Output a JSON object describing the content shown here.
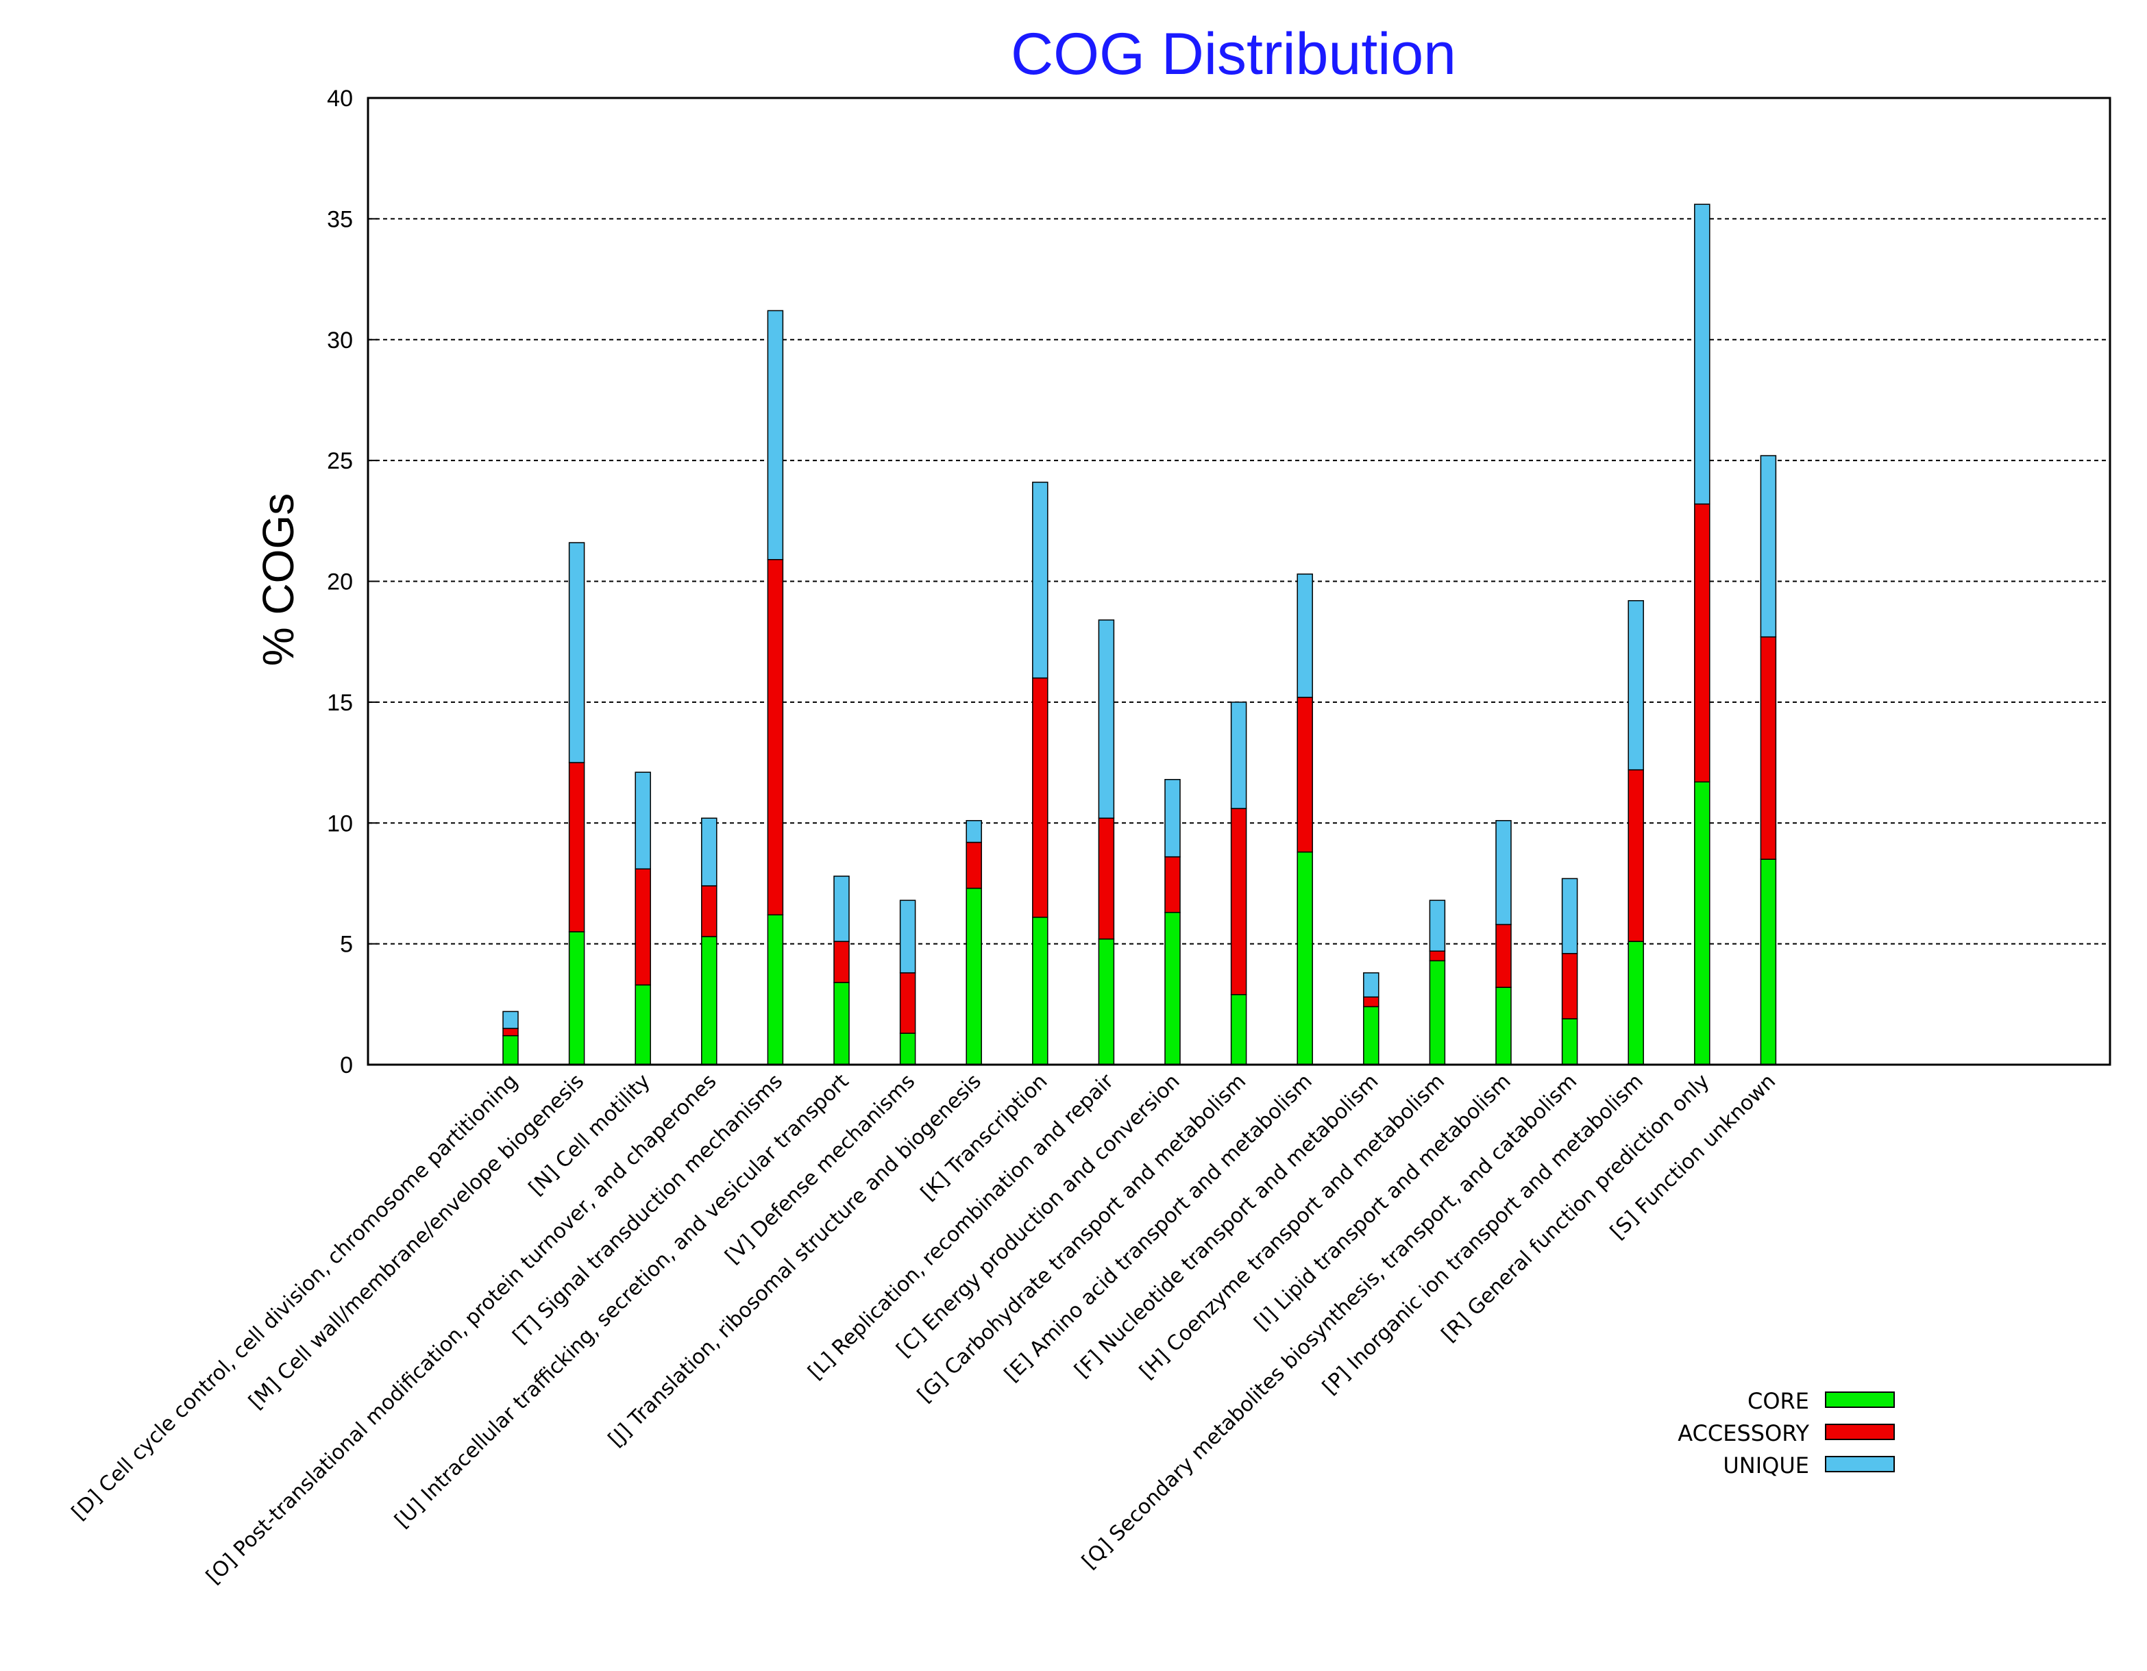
{
  "chart_data": {
    "type": "bar",
    "stacked": true,
    "title": "COG Distribution",
    "xlabel": "",
    "ylabel": "% COGs",
    "ylim": [
      0,
      40
    ],
    "yticks": [
      0,
      5,
      10,
      15,
      20,
      25,
      30,
      35,
      40
    ],
    "grid": true,
    "legend_position": "bottom-right",
    "categories": [
      "[D] Cell cycle control, cell division, chromosome partitioning",
      "[M] Cell wall/membrane/envelope biogenesis",
      "[N] Cell motility",
      "[O] Post-translational modification, protein turnover, and chaperones",
      "[T] Signal transduction mechanisms",
      "[U] Intracellular trafficking, secretion, and vesicular transport",
      "[V] Defense mechanisms",
      "[J] Translation, ribosomal structure and biogenesis",
      "[K] Transcription",
      "[L] Replication, recombination and repair",
      "[C] Energy production and conversion",
      "[G] Carbohydrate transport and metabolism",
      "[E] Amino acid transport and metabolism",
      "[F] Nucleotide transport and metabolism",
      "[H] Coenzyme transport and metabolism",
      "[I] Lipid transport and metabolism",
      "[Q] Secondary metabolites biosynthesis, transport, and catabolism",
      "[P] Inorganic ion transport and metabolism",
      "[R] General function prediction only",
      "[S] Function unknown"
    ],
    "series": [
      {
        "name": "CORE",
        "color": "#00ee00",
        "values": [
          1.2,
          5.5,
          3.3,
          5.3,
          6.2,
          3.4,
          1.3,
          7.3,
          6.1,
          5.2,
          6.3,
          2.9,
          8.8,
          2.4,
          4.3,
          3.2,
          1.9,
          5.1,
          11.7,
          8.5
        ]
      },
      {
        "name": "ACCESSORY",
        "color": "#ee0000",
        "values": [
          0.3,
          7.0,
          4.8,
          2.1,
          14.7,
          1.7,
          2.5,
          1.9,
          9.9,
          5.0,
          2.3,
          7.7,
          6.4,
          0.4,
          0.4,
          2.6,
          2.7,
          7.1,
          11.5,
          9.2
        ]
      },
      {
        "name": "UNIQUE",
        "color": "#55c3ee",
        "values": [
          0.7,
          9.1,
          4.0,
          2.8,
          10.3,
          2.7,
          3.0,
          0.9,
          8.1,
          8.2,
          3.2,
          4.4,
          5.1,
          1.0,
          2.1,
          4.3,
          3.1,
          7.0,
          12.4,
          7.5
        ]
      }
    ]
  }
}
